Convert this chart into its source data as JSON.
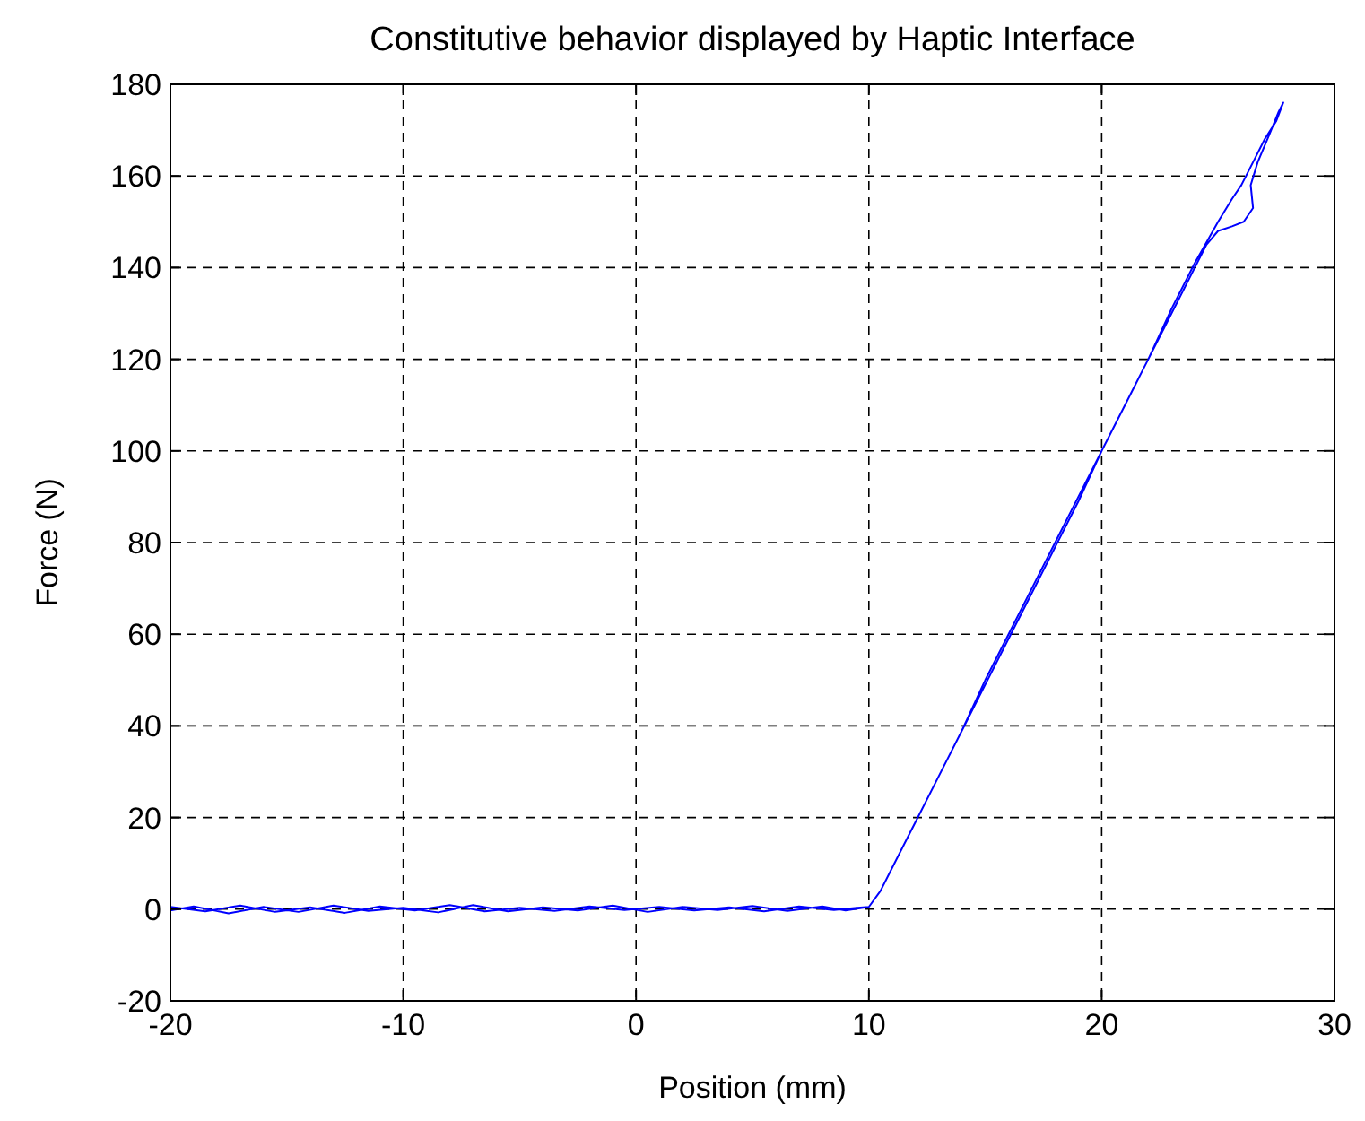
{
  "chart_data": {
    "type": "line",
    "title": "Constitutive behavior displayed by Haptic Interface",
    "xlabel": "Position (mm)",
    "ylabel": "Force (N)",
    "xlim": [
      -20,
      30
    ],
    "ylim": [
      -20,
      180
    ],
    "xticks": [
      -20,
      -10,
      0,
      10,
      20,
      30
    ],
    "yticks": [
      -20,
      0,
      20,
      40,
      60,
      80,
      100,
      120,
      140,
      160,
      180
    ],
    "grid": true,
    "line_style": "solid",
    "marker": "none",
    "series": [
      {
        "color": "#0000ff",
        "x": [
          -20,
          -18.5,
          -17,
          -15.5,
          -14,
          -12.5,
          -11,
          -9.5,
          -8,
          -6.5,
          -5,
          -3.5,
          -2,
          -0.5,
          1,
          2.5,
          4,
          5.5,
          7,
          8.5,
          9.5,
          10,
          10.5,
          11,
          12,
          13,
          14,
          15,
          16,
          17,
          18,
          19,
          20,
          21,
          22,
          23,
          24,
          25,
          25.6,
          26,
          26.5,
          27,
          27.5,
          27.8,
          27.6,
          27.2,
          26.7,
          26.4,
          26.5,
          26.1,
          25.6,
          25,
          24.5,
          24,
          23,
          22,
          21,
          20,
          19,
          18,
          17,
          16,
          15,
          14,
          13,
          12,
          11,
          10.5,
          10,
          9,
          8,
          6.5,
          5,
          3.5,
          2,
          0.5,
          -1,
          -2.5,
          -4,
          -5.5,
          -7,
          -8.5,
          -10,
          -11.5,
          -13,
          -14.5,
          -16,
          -17.5,
          -19,
          -20
        ],
        "values": [
          0.5,
          -0.5,
          0.8,
          -0.6,
          0.4,
          -0.8,
          0.6,
          -0.3,
          0.9,
          -0.5,
          0.3,
          -0.4,
          0.6,
          -0.2,
          0.5,
          -0.3,
          0.4,
          -0.5,
          0.6,
          -0.2,
          0.3,
          0.5,
          4,
          9,
          19,
          29,
          39,
          50,
          60,
          70,
          80,
          90,
          100,
          110,
          120,
          131,
          141,
          150,
          155,
          158,
          163,
          168,
          172,
          176,
          174,
          169,
          163,
          158,
          153,
          150,
          149,
          148,
          145,
          140,
          130,
          120,
          110,
          100,
          89,
          79,
          69,
          59,
          49,
          39,
          29,
          19,
          9,
          4,
          0.5,
          -0.3,
          0.6,
          -0.4,
          0.7,
          -0.2,
          0.5,
          -0.6,
          0.8,
          -0.3,
          0.4,
          -0.5,
          0.9,
          -0.7,
          0.3,
          -0.4,
          0.8,
          -0.6,
          0.5,
          -0.9,
          0.6,
          -0.3
        ]
      }
    ]
  }
}
